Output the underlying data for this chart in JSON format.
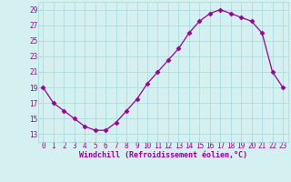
{
  "x": [
    0,
    1,
    2,
    3,
    4,
    5,
    6,
    7,
    8,
    9,
    10,
    11,
    12,
    13,
    14,
    15,
    16,
    17,
    18,
    19,
    20,
    21,
    22,
    23
  ],
  "y": [
    19,
    17,
    16,
    15,
    14,
    13.5,
    13.5,
    14.5,
    16,
    17.5,
    19.5,
    21,
    22.5,
    24,
    26,
    27.5,
    28.5,
    29,
    28.5,
    28,
    27.5,
    26,
    21,
    19
  ],
  "line_color": "#990099",
  "marker": "D",
  "marker_size": 2.5,
  "bg_color": "#d5f0f0",
  "grid_color": "#aadddd",
  "xlabel": "Windchill (Refroidissement éolien,°C)",
  "xlabel_color": "#990099",
  "xlabel_fontsize": 6,
  "tick_color": "#990099",
  "tick_fontsize": 5.5,
  "xlim": [
    -0.5,
    23.5
  ],
  "ylim": [
    12,
    30
  ],
  "yticks": [
    13,
    15,
    17,
    19,
    21,
    23,
    25,
    27,
    29
  ],
  "xticks": [
    0,
    1,
    2,
    3,
    4,
    5,
    6,
    7,
    8,
    9,
    10,
    11,
    12,
    13,
    14,
    15,
    16,
    17,
    18,
    19,
    20,
    21,
    22,
    23
  ]
}
